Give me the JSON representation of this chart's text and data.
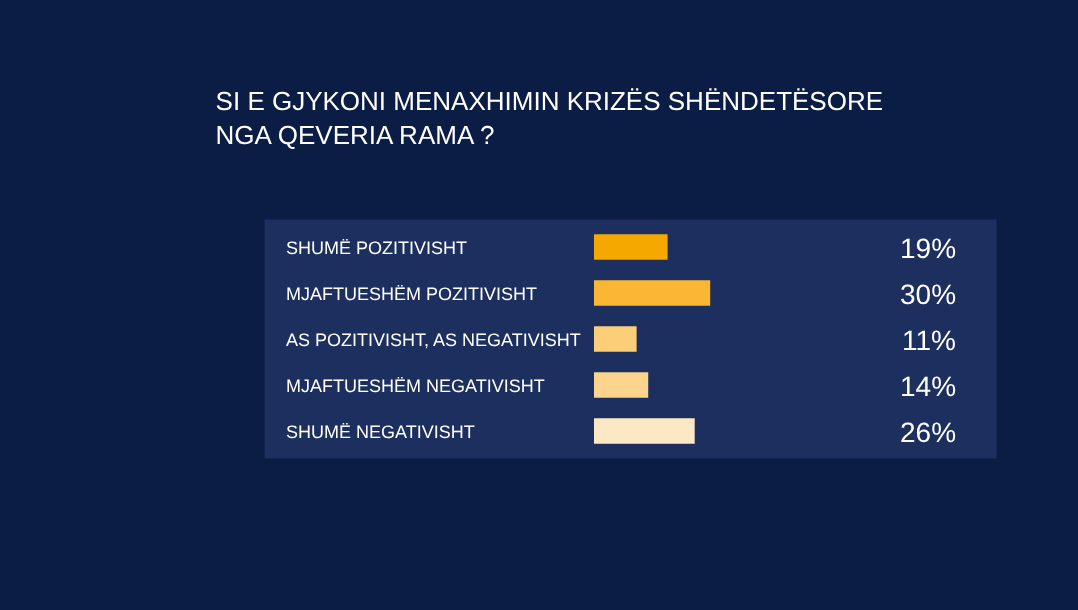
{
  "chart_data": {
    "type": "bar",
    "orientation": "horizontal",
    "title": "SI E GJYKONI MENAXHIMIN KRIZËS SHËNDETËSORE\nNGA QEVERIA RAMA ?",
    "categories": [
      "SHUMË POZITIVISHT",
      "MJAFTUESHËM POZITIVISHT",
      "AS POZITIVISHT, AS NEGATIVISHT",
      "MJAFTUESHËM NEGATIVISHT",
      "SHUMË NEGATIVISHT"
    ],
    "values": [
      19,
      30,
      11,
      14,
      26
    ],
    "value_labels": [
      "19%",
      "30%",
      "11%",
      "14%",
      "26%"
    ],
    "colors": [
      "#f5a800",
      "#fbb634",
      "#fcce78",
      "#fcd48e",
      "#fde8c6"
    ]
  }
}
